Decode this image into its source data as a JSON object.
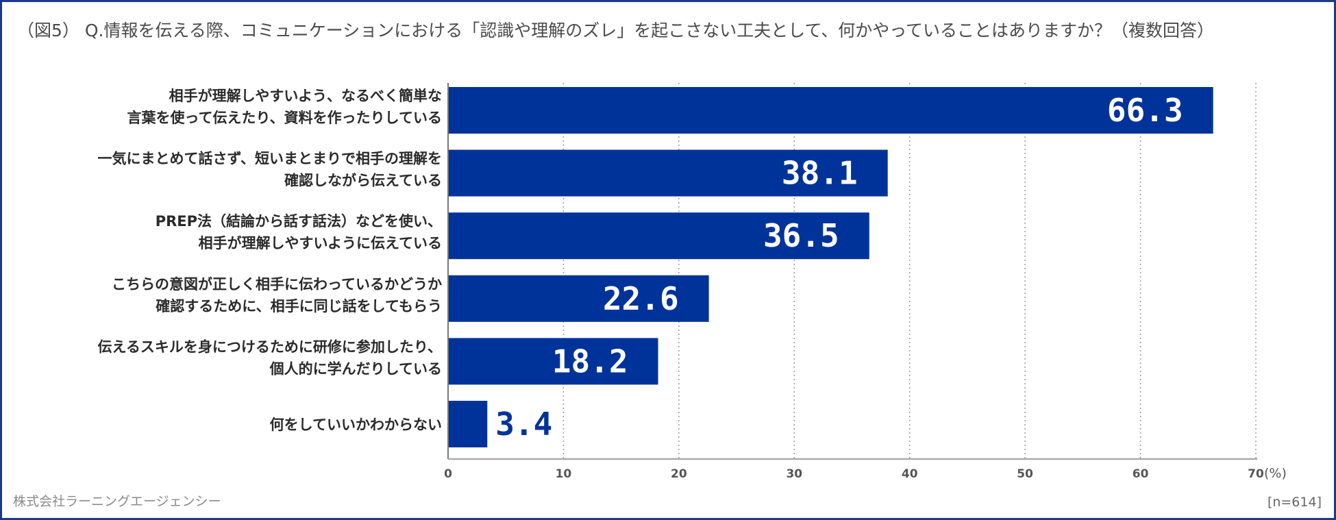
{
  "title": "（図5） Q.情報を伝える際、コミュニケーションにおける「認識や理解のズレ」を起こさない工夫として、何かやっていることはありますか？（複数回答）",
  "footer": {
    "company": "株式会社ラーニングエージェンシー",
    "sample": "[n=614]"
  },
  "colors": {
    "bar": "#003399",
    "value_inside": "#ffffff",
    "value_outside": "#003399",
    "frame": "#1a3a8a",
    "grid": "#9a9a9a"
  },
  "chart_data": {
    "type": "bar",
    "orientation": "horizontal",
    "categories": [
      [
        "相手が理解しやすいよう、なるべく簡単な",
        "言葉を使って伝えたり、資料を作ったりしている"
      ],
      [
        "一気にまとめて話さず、短いまとまりで相手の理解を",
        "確認しながら伝えている"
      ],
      [
        "PREP法（結論から話す話法）などを使い、",
        "相手が理解しやすいように伝えている"
      ],
      [
        "こちらの意図が正しく相手に伝わっているかどうか",
        "確認するために、相手に同じ話をしてもらう"
      ],
      [
        "伝えるスキルを身につけるために研修に参加したり、",
        "個人的に学んだりしている"
      ],
      [
        "何をしていいかわからない"
      ]
    ],
    "values": [
      66.3,
      38.1,
      36.5,
      22.6,
      18.2,
      3.4
    ],
    "value_labels": [
      "66.3",
      "38.1",
      "36.5",
      "22.6",
      "18.2",
      "3.4"
    ],
    "xlim": [
      0,
      70
    ],
    "xticks": [
      0,
      10,
      20,
      30,
      40,
      50,
      60,
      70
    ],
    "xtick_labels": [
      "0",
      "10",
      "20",
      "30",
      "40",
      "50",
      "60",
      "70"
    ],
    "unit": "(%)",
    "grid": "dotted-vertical"
  }
}
